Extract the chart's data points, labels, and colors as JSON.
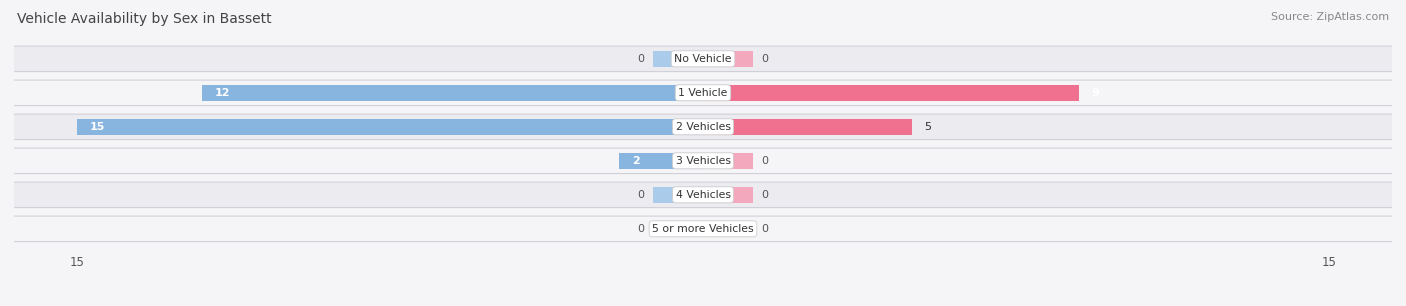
{
  "title": "Vehicle Availability by Sex in Bassett",
  "source": "Source: ZipAtlas.com",
  "categories": [
    "No Vehicle",
    "1 Vehicle",
    "2 Vehicles",
    "3 Vehicles",
    "4 Vehicles",
    "5 or more Vehicles"
  ],
  "male_values": [
    0,
    12,
    15,
    2,
    0,
    0
  ],
  "female_values": [
    0,
    9,
    5,
    0,
    0,
    0
  ],
  "male_color": "#88b4e0",
  "female_color": "#f07090",
  "male_stub_color": "#aaccea",
  "female_stub_color": "#f4a8be",
  "row_bg_color_odd": "#ebebf0",
  "row_bg_color_even": "#f5f5f8",
  "bg_color": "#f5f5f8",
  "axis_max": 15,
  "title_fontsize": 10,
  "label_fontsize": 8,
  "tick_fontsize": 8.5,
  "source_fontsize": 8
}
